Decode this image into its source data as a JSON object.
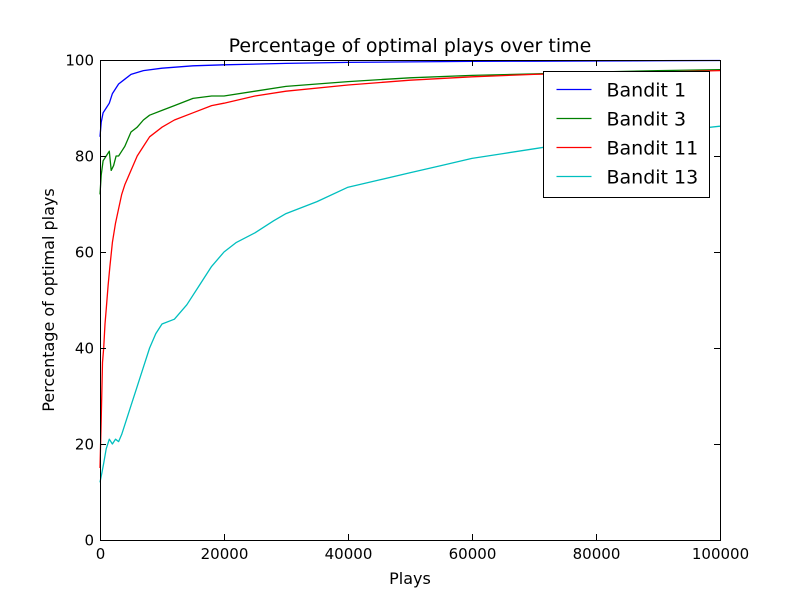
{
  "chart_data": {
    "type": "line",
    "title": "Percentage of optimal plays over time",
    "xlabel": "Plays",
    "ylabel": "Percentage of optimal plays",
    "xlim": [
      0,
      100000
    ],
    "ylim": [
      0,
      100
    ],
    "xticks": [
      "0",
      "20000",
      "40000",
      "60000",
      "80000",
      "100000"
    ],
    "yticks": [
      "0",
      "20",
      "40",
      "60",
      "80",
      "100"
    ],
    "grid": false,
    "legend_position": "top-right",
    "series": [
      {
        "name": "Bandit 1",
        "color": "#0000ff",
        "x": [
          0,
          200,
          500,
          1000,
          1500,
          2000,
          3000,
          4000,
          5000,
          7000,
          10000,
          15000,
          20000,
          30000,
          40000,
          50000,
          60000,
          70000,
          80000,
          90000,
          100000
        ],
        "y": [
          84,
          87,
          89,
          90,
          91,
          93,
          95,
          96,
          97,
          97.8,
          98.3,
          98.8,
          99.0,
          99.3,
          99.5,
          99.6,
          99.7,
          99.75,
          99.8,
          99.85,
          99.9
        ]
      },
      {
        "name": "Bandit 3",
        "color": "#008000",
        "x": [
          0,
          200,
          500,
          1000,
          1500,
          1800,
          2200,
          2600,
          3000,
          3500,
          4000,
          5000,
          6000,
          7000,
          8000,
          10000,
          12000,
          15000,
          18000,
          20000,
          25000,
          30000,
          40000,
          50000,
          60000,
          70000,
          80000,
          90000,
          100000
        ],
        "y": [
          72,
          76,
          79,
          80,
          81,
          77,
          78,
          80,
          80,
          81,
          82,
          85,
          86,
          87.5,
          88.5,
          89.5,
          90.5,
          92,
          92.5,
          92.5,
          93.5,
          94.5,
          95.5,
          96.3,
          96.8,
          97.1,
          97.5,
          97.8,
          98
        ]
      },
      {
        "name": "Bandit 11",
        "color": "#ff0000",
        "x": [
          0,
          200,
          400,
          600,
          800,
          1000,
          1300,
          1600,
          2000,
          2500,
          3000,
          3500,
          4000,
          5000,
          6000,
          7000,
          8000,
          10000,
          12000,
          15000,
          18000,
          20000,
          25000,
          30000,
          40000,
          50000,
          60000,
          70000,
          80000,
          90000,
          100000
        ],
        "y": [
          15,
          25,
          37,
          40,
          45,
          48,
          53,
          57,
          62,
          66,
          69,
          72,
          74,
          77,
          80,
          82,
          84,
          86,
          87.5,
          89,
          90.5,
          91,
          92.5,
          93.5,
          94.8,
          95.8,
          96.5,
          97,
          97.3,
          97.5,
          97.8
        ]
      },
      {
        "name": "Bandit 13",
        "color": "#00bfbf",
        "x": [
          0,
          300,
          600,
          1000,
          1500,
          2000,
          2500,
          3000,
          3500,
          4000,
          5000,
          6000,
          7000,
          8000,
          9000,
          10000,
          12000,
          14000,
          16000,
          18000,
          20000,
          22000,
          25000,
          28000,
          30000,
          35000,
          40000,
          45000,
          50000,
          55000,
          60000,
          65000,
          70000,
          75000,
          80000,
          85000,
          90000,
          95000,
          100000
        ],
        "y": [
          12,
          14,
          16,
          19,
          21,
          20,
          21,
          20.5,
          22,
          24,
          28,
          32,
          36,
          40,
          43,
          45,
          46,
          49,
          53,
          57,
          60,
          62,
          64,
          66.5,
          68,
          70.5,
          73.5,
          75,
          76.5,
          78,
          79.5,
          80.5,
          81.5,
          82.5,
          83,
          84,
          84.7,
          85.5,
          86.2
        ]
      }
    ]
  }
}
